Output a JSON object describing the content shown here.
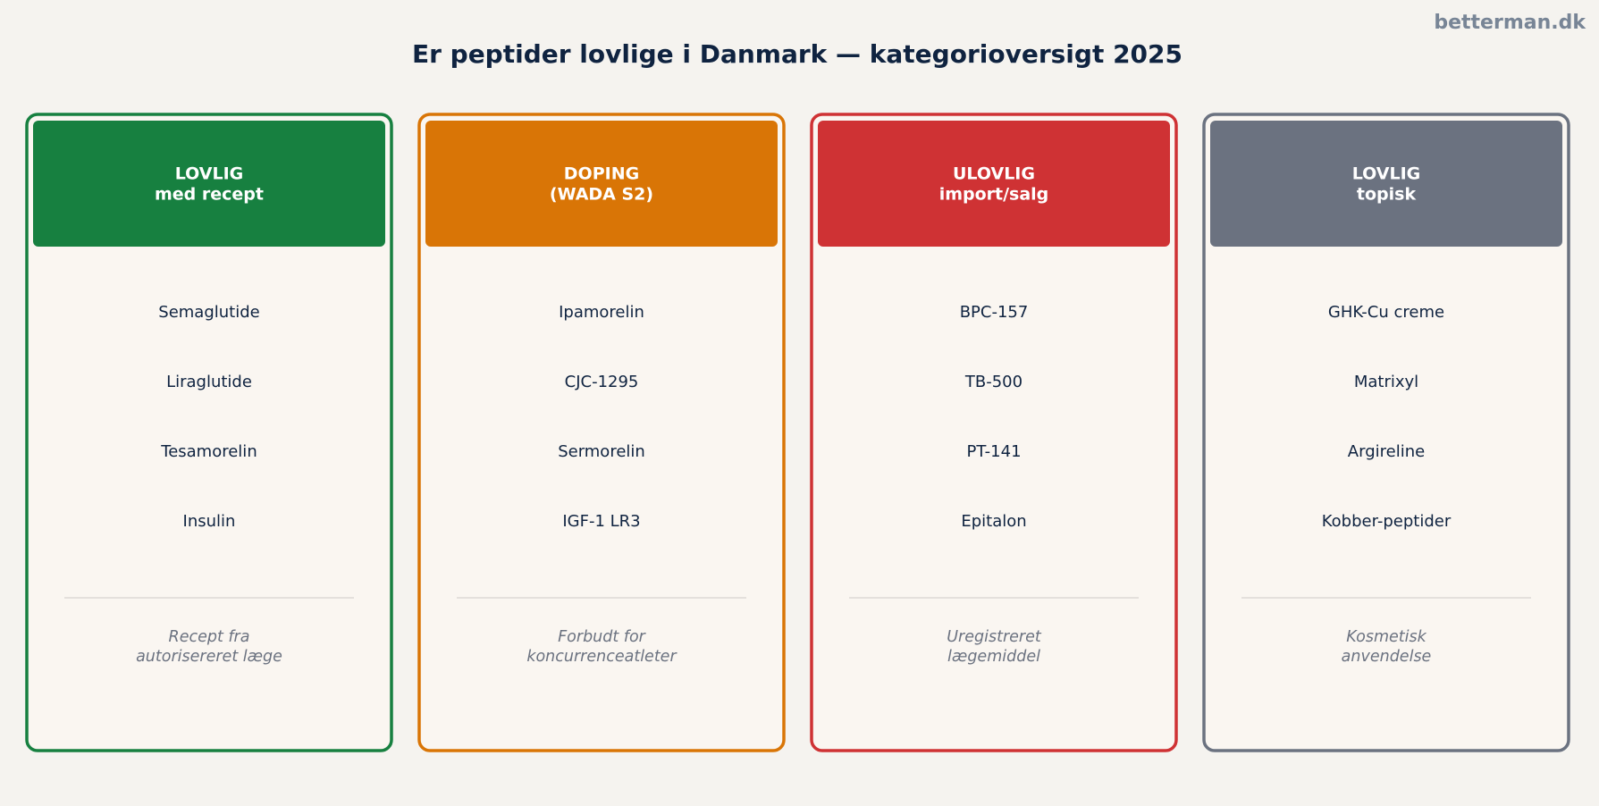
{
  "header": {
    "title": "Er peptider lovlige i Danmark — kategorioversigt 2025",
    "watermark": "betterman.dk"
  },
  "cards": [
    {
      "color": "#178040",
      "title_lines": [
        "LOVLIG",
        "med recept"
      ],
      "items": [
        "Semaglutide",
        "Liraglutide",
        "Tesamorelin",
        "Insulin"
      ],
      "note_lines": [
        "Recept fra",
        "autorisereret læge"
      ]
    },
    {
      "color": "#d97506",
      "title_lines": [
        "DOPING",
        "(WADA S2)"
      ],
      "items": [
        "Ipamorelin",
        "CJC-1295",
        "Sermorelin",
        "IGF-1 LR3"
      ],
      "note_lines": [
        "Forbudt for",
        "koncurrenceatleter"
      ]
    },
    {
      "color": "#cf3234",
      "title_lines": [
        "ULOVLIG",
        "import/salg"
      ],
      "items": [
        "BPC-157",
        "TB-500",
        "PT-141",
        "Epitalon"
      ],
      "note_lines": [
        "Uregistreret",
        "lægemiddel"
      ]
    },
    {
      "color": "#6b7280",
      "title_lines": [
        "LOVLIG",
        "topisk"
      ],
      "items": [
        "GHK-Cu creme",
        "Matrixyl",
        "Argireline",
        "Kobber-peptider"
      ],
      "note_lines": [
        "Kosmetisk",
        "anvendelse"
      ]
    }
  ]
}
